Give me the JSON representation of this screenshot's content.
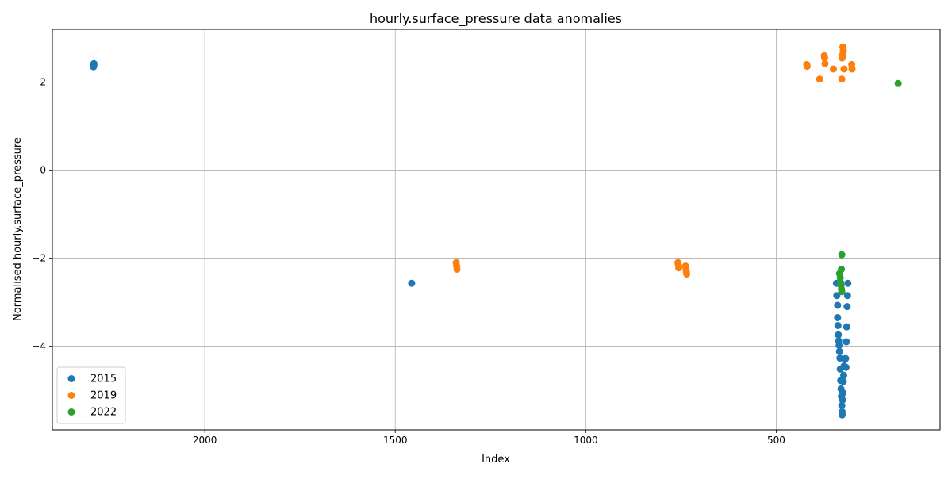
{
  "chart_data": {
    "type": "scatter",
    "title": "hourly.surface_pressure data anomalies",
    "xlabel": "Index",
    "ylabel": "Normalised hourly.surface_pressure",
    "x_inverted": true,
    "xlim": [
      2400,
      70
    ],
    "ylim": [
      -5.9,
      3.2
    ],
    "x_ticks": [
      2000,
      1500,
      1000,
      500
    ],
    "y_ticks": [
      -4,
      -2,
      0,
      2
    ],
    "grid": true,
    "legend_position": "lower-left",
    "series": [
      {
        "name": "2015",
        "color": "#1f77b4",
        "points": [
          [
            2291,
            2.42
          ],
          [
            2291,
            2.39
          ],
          [
            2292,
            2.35
          ],
          [
            1457,
            -2.57
          ],
          [
            342,
            -2.57
          ],
          [
            341,
            -2.85
          ],
          [
            339,
            -3.07
          ],
          [
            339,
            -3.35
          ],
          [
            338,
            -3.53
          ],
          [
            337,
            -3.74
          ],
          [
            336,
            -3.88
          ],
          [
            335,
            -3.98
          ],
          [
            334,
            -4.12
          ],
          [
            333,
            -4.27
          ],
          [
            332,
            -4.52
          ],
          [
            331,
            -4.78
          ],
          [
            330,
            -4.97
          ],
          [
            329,
            -5.14
          ],
          [
            328,
            -5.35
          ],
          [
            327,
            -5.49
          ],
          [
            327,
            -5.56
          ],
          [
            326,
            -5.22
          ],
          [
            325,
            -5.06
          ],
          [
            324,
            -4.8
          ],
          [
            323,
            -4.66
          ],
          [
            322,
            -4.45
          ],
          [
            320,
            -4.3
          ],
          [
            318,
            -4.28
          ],
          [
            317,
            -4.48
          ],
          [
            316,
            -3.9
          ],
          [
            315,
            -3.56
          ],
          [
            314,
            -3.1
          ],
          [
            313,
            -2.85
          ],
          [
            312,
            -2.57
          ]
        ]
      },
      {
        "name": "2019",
        "color": "#ff7f0e",
        "points": [
          [
            1340,
            -2.1
          ],
          [
            1339,
            -2.18
          ],
          [
            1338,
            -2.25
          ],
          [
            758,
            -2.1
          ],
          [
            757,
            -2.15
          ],
          [
            756,
            -2.22
          ],
          [
            738,
            -2.18
          ],
          [
            737,
            -2.22
          ],
          [
            736,
            -2.3
          ],
          [
            735,
            -2.36
          ],
          [
            420,
            2.4
          ],
          [
            419,
            2.36
          ],
          [
            386,
            2.07
          ],
          [
            374,
            2.6
          ],
          [
            373,
            2.55
          ],
          [
            372,
            2.42
          ],
          [
            350,
            2.3
          ],
          [
            328,
            2.07
          ],
          [
            327,
            2.55
          ],
          [
            326,
            2.62
          ],
          [
            325,
            2.8
          ],
          [
            324,
            2.72
          ],
          [
            322,
            2.3
          ],
          [
            302,
            2.4
          ],
          [
            301,
            2.3
          ]
        ]
      },
      {
        "name": "2022",
        "color": "#2ca02c",
        "points": [
          [
            334,
            -2.35
          ],
          [
            332,
            -2.45
          ],
          [
            331,
            -2.55
          ],
          [
            330,
            -2.62
          ],
          [
            329,
            -2.7
          ],
          [
            328,
            -2.76
          ],
          [
            329,
            -2.25
          ],
          [
            328,
            -1.92
          ],
          [
            180,
            1.97
          ]
        ]
      }
    ]
  }
}
